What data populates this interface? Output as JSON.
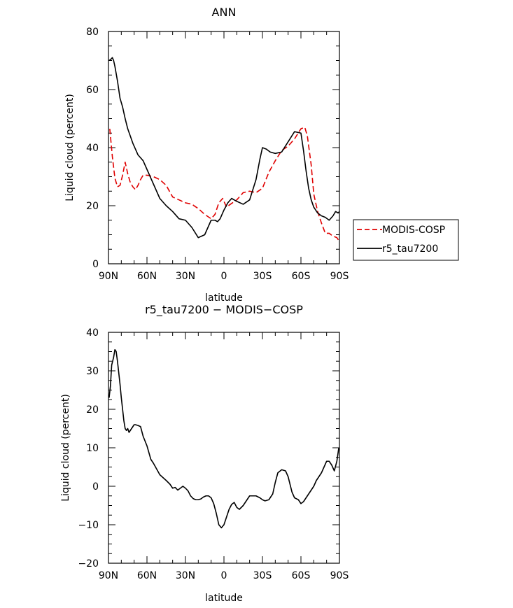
{
  "chart_data": [
    {
      "type": "line",
      "title": "ANN",
      "xlabel": "latitude",
      "ylabel": "Liquid cloud (percent)",
      "xticks": [
        {
          "value": 90,
          "label": "90N"
        },
        {
          "value": 60,
          "label": "60N"
        },
        {
          "value": 30,
          "label": "30N"
        },
        {
          "value": 0,
          "label": "0"
        },
        {
          "value": -30,
          "label": "30S"
        },
        {
          "value": -60,
          "label": "60S"
        },
        {
          "value": -90,
          "label": "90S"
        }
      ],
      "xlim": [
        90,
        -90
      ],
      "ylim": [
        0,
        80
      ],
      "yticks": [
        0,
        20,
        40,
        60,
        80
      ],
      "legend_position": "right",
      "series": [
        {
          "name": "MODIS-COSP",
          "color": "#e00000",
          "style": "dashed",
          "x": [
            89,
            87,
            85,
            83,
            81,
            79,
            77,
            75,
            73,
            71,
            69,
            67,
            65,
            63,
            60,
            55,
            50,
            45,
            40,
            35,
            30,
            25,
            20,
            15,
            10,
            7,
            4,
            1,
            -2,
            -5,
            -10,
            -15,
            -20,
            -25,
            -30,
            -35,
            -40,
            -45,
            -50,
            -55,
            -60,
            -63,
            -65,
            -68,
            -70,
            -73,
            -76,
            -79,
            -82,
            -85,
            -88,
            -89.5
          ],
          "y": [
            46.5,
            37,
            29.5,
            26.5,
            27,
            30.5,
            35,
            31,
            28,
            26.5,
            25.5,
            27,
            29,
            30.5,
            30.5,
            30,
            29,
            27,
            23,
            22,
            21,
            20.5,
            19,
            17,
            15.5,
            17,
            21,
            22.5,
            19.5,
            20.5,
            22,
            24.5,
            25,
            24.5,
            26,
            31.5,
            35.5,
            39,
            40.5,
            43,
            46.5,
            47,
            44,
            34,
            24,
            18,
            14,
            10.5,
            10.5,
            9.5,
            9,
            8
          ]
        },
        {
          "name": "r5_tau7200",
          "color": "#000000",
          "style": "solid",
          "x": [
            89.5,
            88,
            87,
            86,
            85,
            83,
            81,
            79,
            77,
            75,
            73,
            71,
            69,
            67,
            65,
            63,
            60,
            55,
            50,
            45,
            40,
            35,
            30,
            25,
            20,
            15,
            10,
            7,
            5,
            3,
            0,
            -3,
            -6,
            -10,
            -15,
            -20,
            -25,
            -28,
            -30,
            -33,
            -36,
            -40,
            -45,
            -50,
            -55,
            -60,
            -62,
            -64,
            -66,
            -68,
            -70,
            -73,
            -76,
            -79,
            -82,
            -85,
            -87,
            -89,
            -90
          ],
          "y": [
            70,
            70.5,
            71,
            70,
            68,
            63,
            57,
            54,
            50,
            46.5,
            44,
            41.5,
            39.5,
            37.5,
            36.5,
            35.5,
            32.5,
            27.5,
            22.5,
            20,
            18,
            15.5,
            15,
            12.5,
            9,
            10,
            15,
            15,
            14.5,
            15.5,
            18.5,
            21,
            22.5,
            21.5,
            20.5,
            22,
            29,
            36,
            40,
            39.5,
            38.5,
            38,
            38.5,
            42,
            45.5,
            45,
            39,
            32,
            26,
            22,
            19.5,
            17.5,
            16.5,
            16,
            15,
            16.5,
            18,
            17.5,
            18
          ]
        }
      ]
    },
    {
      "type": "line",
      "title": "r5_tau7200 − MODIS−COSP",
      "xlabel": "latitude",
      "ylabel": "Liquid cloud (percent)",
      "xticks": [
        {
          "value": 90,
          "label": "90N"
        },
        {
          "value": 60,
          "label": "60N"
        },
        {
          "value": 30,
          "label": "30N"
        },
        {
          "value": 0,
          "label": "0"
        },
        {
          "value": -30,
          "label": "30S"
        },
        {
          "value": -60,
          "label": "60S"
        },
        {
          "value": -90,
          "label": "90S"
        }
      ],
      "xlim": [
        90,
        -90
      ],
      "ylim": [
        -20,
        40
      ],
      "yticks": [
        40,
        30,
        20,
        10,
        0,
        -10,
        -20
      ],
      "ytick_labels": [
        "40",
        "30",
        "20",
        "10",
        "0",
        "−10",
        "−20"
      ],
      "series": [
        {
          "color": "#000000",
          "style": "solid",
          "x": [
            89.5,
            88.5,
            87.5,
            86,
            85,
            84,
            83,
            82,
            81,
            80,
            79,
            78,
            77,
            76,
            75,
            74,
            73,
            72,
            71,
            70,
            69,
            67,
            65,
            63,
            60,
            57,
            55,
            50,
            45,
            42,
            40,
            38,
            36,
            34,
            32,
            30,
            28,
            26,
            24,
            22,
            20,
            18,
            16,
            14,
            12,
            10,
            8,
            6,
            4,
            2,
            0,
            -2,
            -4,
            -6,
            -8,
            -10,
            -12,
            -15,
            -18,
            -20,
            -22,
            -25,
            -28,
            -30,
            -32,
            -35,
            -38,
            -40,
            -42,
            -45,
            -48,
            -50,
            -53,
            -55,
            -58,
            -60,
            -62,
            -64,
            -65,
            -66,
            -68,
            -70,
            -72,
            -74,
            -76,
            -78,
            -80,
            -82,
            -84,
            -86,
            -88,
            -89.5
          ],
          "y": [
            23,
            26,
            31.5,
            33.5,
            35.5,
            35,
            32.5,
            29.5,
            26.5,
            23,
            20,
            17,
            15,
            14.5,
            15,
            14,
            14.5,
            15,
            15.5,
            16,
            16,
            15.8,
            15.5,
            13,
            10.5,
            7,
            6,
            3,
            1.5,
            0.5,
            -0.5,
            -0.3,
            -1,
            -0.5,
            0,
            -0.5,
            -1.2,
            -2.5,
            -3.2,
            -3.5,
            -3.5,
            -3.3,
            -2.8,
            -2.5,
            -2.5,
            -3,
            -4.5,
            -7,
            -10,
            -10.8,
            -10,
            -8,
            -6,
            -4.7,
            -4.2,
            -5.5,
            -6,
            -5,
            -3.5,
            -2.5,
            -2.5,
            -2.5,
            -3,
            -3.5,
            -3.8,
            -3.5,
            -2,
            1,
            3.5,
            4.3,
            4,
            2.5,
            -1.5,
            -3,
            -3.5,
            -4.5,
            -4,
            -3,
            -2.5,
            -2,
            -1,
            0,
            1.5,
            2.5,
            3.5,
            5,
            6.5,
            6.5,
            5.5,
            4,
            6.5,
            10
          ]
        }
      ]
    }
  ]
}
